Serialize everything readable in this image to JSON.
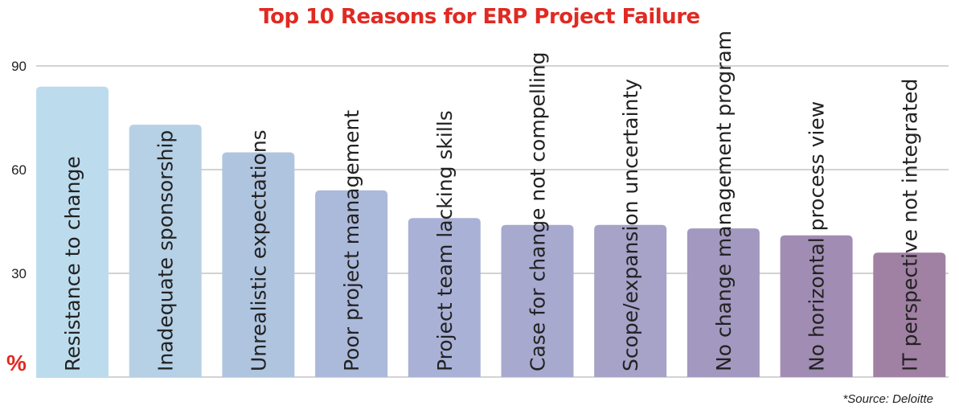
{
  "chart_data": {
    "type": "bar",
    "title": "Top 10 Reasons for ERP Project Failure",
    "ylabel": "%",
    "xlabel": "",
    "ylim": [
      0,
      90
    ],
    "yticks": [
      30,
      60,
      90
    ],
    "grid": true,
    "categories": [
      "Resistance to change",
      "Inadequate sponsorship",
      "Unrealistic expectations",
      "Poor project management",
      "Project team lacking skills",
      "Case for change not compelling",
      "Scope/expansion uncertainty",
      "No change management program",
      "No horizontal process view",
      "IT perspective not integrated"
    ],
    "values": [
      84,
      73,
      65,
      54,
      46,
      44,
      44,
      43,
      41,
      36
    ],
    "colors": [
      "#bcdcee",
      "#b6d1e6",
      "#afc4df",
      "#abb9da",
      "#a9b1d6",
      "#a8a9cf",
      "#a6a2c8",
      "#a398bf",
      "#a18db3",
      "#a080a3"
    ],
    "source": "*Source: Deloitte"
  }
}
